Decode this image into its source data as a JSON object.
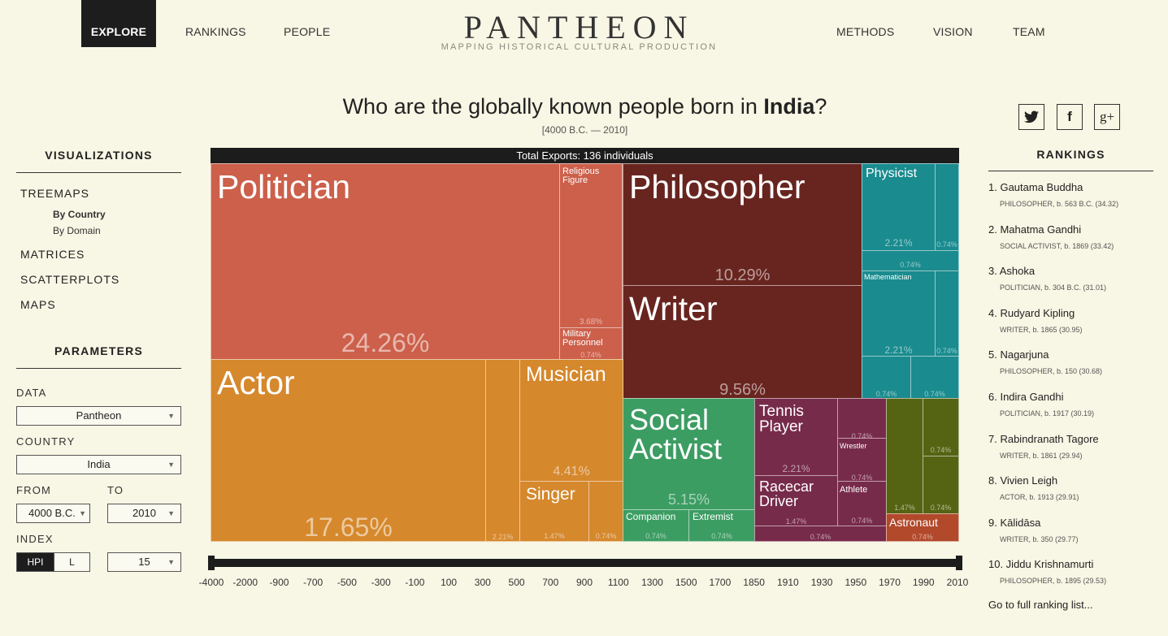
{
  "nav": {
    "explore": "EXPLORE",
    "rankings": "RANKINGS",
    "people": "PEOPLE",
    "methods": "METHODS",
    "vision": "VISION",
    "team": "TEAM"
  },
  "logo": {
    "title": "PANTHEON",
    "subtitle": "MAPPING HISTORICAL CULTURAL PRODUCTION"
  },
  "header": {
    "question_prefix": "Who are the globally known people born in ",
    "country": "India",
    "question_suffix": "?",
    "range": "[4000 B.C. — 2010]"
  },
  "share": {
    "twitter": "t",
    "facebook": "f",
    "google": "g+"
  },
  "sidebar": {
    "visualizations_title": "VISUALIZATIONS",
    "treemaps": "TREEMAPS",
    "by_country": "By Country",
    "by_domain": "By Domain",
    "matrices": "MATRICES",
    "scatterplots": "SCATTERPLOTS",
    "maps": "MAPS",
    "parameters_title": "PARAMETERS",
    "data_label": "DATA",
    "data_value": "Pantheon",
    "country_label": "COUNTRY",
    "country_value": "India",
    "from_label": "FROM",
    "from_value": "4000 B.C.",
    "to_label": "TO",
    "to_value": "2010",
    "index_label": "INDEX",
    "index_hpi": "HPI",
    "index_l": "L",
    "index_count": "15",
    "caret": "▼"
  },
  "treemap": {
    "header": "Total Exports: 136 individuals",
    "cells": {
      "politician": {
        "label": "Politician",
        "pct": "24.26%"
      },
      "religious": {
        "label1": "Religious",
        "label2": "Figure",
        "pct": "3.68%"
      },
      "military": {
        "label1": "Military",
        "label2": "Personnel",
        "pct": "0.74%"
      },
      "philosopher": {
        "label": "Philosopher",
        "pct": "10.29%"
      },
      "writer": {
        "label": "Writer",
        "pct": "9.56%"
      },
      "physicist": {
        "label": "Physicist",
        "pct": "2.21%",
        "pct_small": "0.74%"
      },
      "physics_extra": {
        "pct": "0.74%"
      },
      "mathematician": {
        "label": "Mathematician",
        "pct": "2.21%",
        "pct_small": "0.74%"
      },
      "science_a": {
        "pct": "0.74%"
      },
      "science_b": {
        "pct": "0.74%"
      },
      "actor": {
        "label": "Actor",
        "pct": "17.65%",
        "pct_small": "2.21%"
      },
      "musician": {
        "label": "Musician",
        "pct": "4.41%"
      },
      "singer": {
        "label": "Singer",
        "pct": "1.47%",
        "pct_small": "0.74%"
      },
      "social": {
        "label1": "Social",
        "label2": "Activist",
        "pct": "5.15%"
      },
      "companion": {
        "label": "Companion",
        "pct": "0.74%"
      },
      "extremist": {
        "label": "Extremist",
        "pct": "0.74%"
      },
      "tennis": {
        "label1": "Tennis",
        "label2": "Player",
        "pct": "2.21%"
      },
      "racecar": {
        "label1": "Racecar",
        "label2": "Driver",
        "pct": "1.47%"
      },
      "wrestler": {
        "label": "Wrestler",
        "pct_top": "0.74%",
        "pct": "0.74%"
      },
      "athlete": {
        "label": "Athlete",
        "pct": "0.74%"
      },
      "sports_bottom": {
        "pct": "0.74%"
      },
      "olive_a": {
        "pct": "1.47%"
      },
      "olive_b": {
        "pct": "0.74%"
      },
      "olive_c": {
        "pct": "0.74%"
      },
      "astronaut": {
        "label": "Astronaut",
        "pct": "0.74%"
      }
    }
  },
  "timeline": {
    "ticks": [
      "-4000",
      "-2000",
      "-900",
      "-700",
      "-500",
      "-300",
      "-100",
      "100",
      "300",
      "500",
      "700",
      "900",
      "1100",
      "1300",
      "1500",
      "1700",
      "1850",
      "1910",
      "1930",
      "1950",
      "1970",
      "1990",
      "2010"
    ]
  },
  "rankings": {
    "title": "RANKINGS",
    "items": [
      {
        "name": "1. Gautama Buddha",
        "meta": "PHILOSOPHER, b. 563 B.C. (34.32)"
      },
      {
        "name": "2. Mahatma Gandhi",
        "meta": "SOCIAL ACTIVIST, b. 1869 (33.42)"
      },
      {
        "name": "3. Ashoka",
        "meta": "POLITICIAN, b. 304 B.C. (31.01)"
      },
      {
        "name": "4. Rudyard Kipling",
        "meta": "WRITER, b. 1865 (30.95)"
      },
      {
        "name": "5. Nagarjuna",
        "meta": "PHILOSOPHER, b. 150 (30.68)"
      },
      {
        "name": "6. Indira Gandhi",
        "meta": "POLITICIAN, b. 1917 (30.19)"
      },
      {
        "name": "7. Rabindranath Tagore",
        "meta": "WRITER, b. 1861 (29.94)"
      },
      {
        "name": "8. Vivien Leigh",
        "meta": "ACTOR, b. 1913 (29.91)"
      },
      {
        "name": "9. Kālidāsa",
        "meta": "WRITER, b. 350 (29.77)"
      },
      {
        "name": "10. Jiddu Krishnamurti",
        "meta": "PHILOSOPHER, b. 1895 (29.53)"
      }
    ],
    "full_link": "Go to full ranking list..."
  }
}
